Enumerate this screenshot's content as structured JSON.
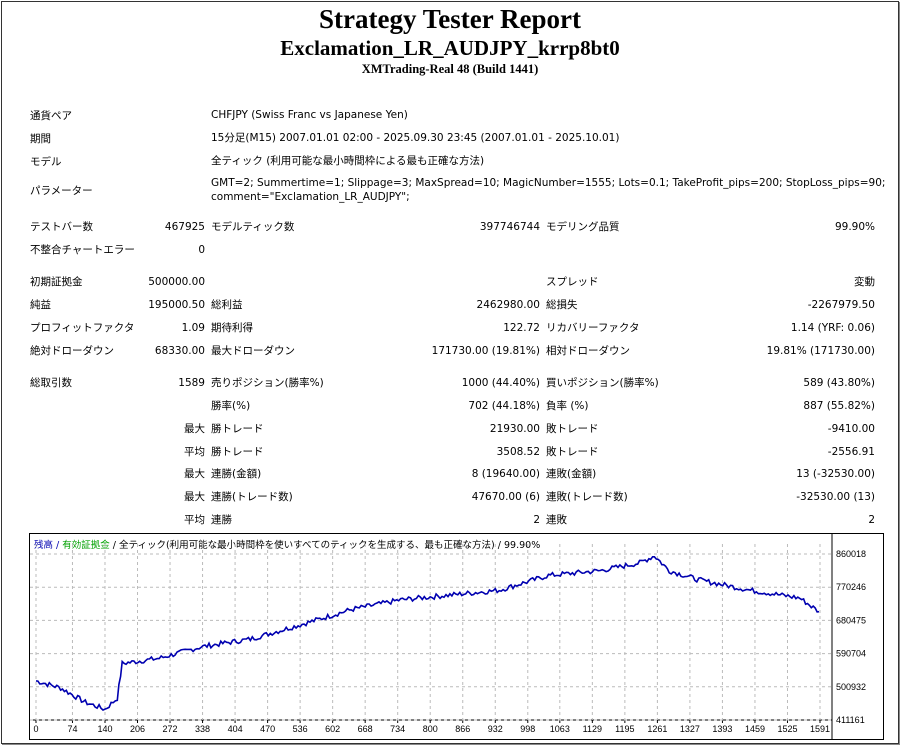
{
  "header": {
    "title": "Strategy Tester Report",
    "subtitle": "Exclamation_LR_AUDJPY_krrp8bt0",
    "server": "XMTrading-Real 48 (Build 1441)"
  },
  "info": [
    {
      "label": "通貨ペア",
      "value": "CHFJPY (Swiss Franc vs Japanese Yen)"
    },
    {
      "label": "期間",
      "value": "15分足(M15) 2007.01.01 02:00 - 2025.09.30 23:45 (2007.01.01 - 2025.10.01)"
    },
    {
      "label": "モデル",
      "value": "全ティック (利用可能な最小時間枠による最も正確な方法)"
    },
    {
      "label": "パラメーター",
      "value": "GMT=2; Summertime=1; Slippage=3; MaxSpread=10; MagicNumber=1555; Lots=0.1; TakeProfit_pips=200; StopLoss_pips=90;",
      "value2": "comment=\"Exclamation_LR_AUDJPY\";"
    }
  ],
  "stats": [
    [
      "テストバー数",
      "467925",
      "モデルティック数",
      "397746744",
      "モデリング品質",
      "99.90%"
    ],
    [
      "不整合チャートエラー",
      "0",
      "",
      "",
      "",
      ""
    ],
    [
      "初期証拠金",
      "500000.00",
      "",
      "",
      "スプレッド",
      "変動"
    ],
    [
      "純益",
      "195000.50",
      "総利益",
      "2462980.00",
      "総損失",
      "-2267979.50"
    ],
    [
      "プロフィットファクタ",
      "1.09",
      "期待利得",
      "122.72",
      "リカバリーファクタ",
      "1.14 (YRF: 0.06)"
    ],
    [
      "絶対ドローダウン",
      "68330.00",
      "最大ドローダウン",
      "171730.00 (19.81%)",
      "相対ドローダウン",
      "19.81% (171730.00)"
    ],
    [
      "総取引数",
      "1589",
      "売りポジション(勝率%)",
      "1000 (44.40%)",
      "買いポジション(勝率%)",
      "589 (43.80%)"
    ],
    [
      "",
      "",
      "勝率(%)",
      "702 (44.18%)",
      "負率 (%)",
      "887 (55.82%)"
    ],
    [
      "",
      "最大",
      "勝トレード",
      "21930.00",
      "敗トレード",
      "-9410.00"
    ],
    [
      "",
      "平均",
      "勝トレード",
      "3508.52",
      "敗トレード",
      "-2556.91"
    ],
    [
      "",
      "最大",
      "連勝(金額)",
      "8 (19640.00)",
      "連敗(金額)",
      "13 (-32530.00)"
    ],
    [
      "",
      "最大",
      "連勝(トレード数)",
      "47670.00 (6)",
      "連敗(トレード数)",
      "-32530.00 (13)"
    ],
    [
      "",
      "平均",
      "連勝",
      "2",
      "連敗",
      "2"
    ]
  ],
  "chart_data": {
    "type": "line",
    "legend": {
      "balance": "残高",
      "sep1": " / ",
      "equity": "有効証拠金",
      "sep2": " / ",
      "model": "全ティック(利用可能な最小時間枠を使いすべてのティックを生成する、最も正確な方法)",
      "sep3": " / ",
      "quality": "99.90%"
    },
    "colors": {
      "balance": "#0000b0",
      "equity": "#00a000"
    },
    "x_ticks": [
      "0",
      "74",
      "140",
      "206",
      "272",
      "338",
      "404",
      "470",
      "536",
      "602",
      "668",
      "734",
      "800",
      "866",
      "932",
      "998",
      "1063",
      "1129",
      "1195",
      "1261",
      "1327",
      "1393",
      "1459",
      "1525",
      "1591"
    ],
    "y_ticks": [
      "860018",
      "770246",
      "680475",
      "590704",
      "500932",
      "411161"
    ],
    "ylim": [
      411161,
      860018
    ],
    "xlim": [
      0,
      1591
    ],
    "series": [
      {
        "name": "残高",
        "points": [
          [
            0,
            517000
          ],
          [
            50,
            498000
          ],
          [
            100,
            459000
          ],
          [
            140,
            440000
          ],
          [
            165,
            470000
          ],
          [
            175,
            564000
          ],
          [
            250,
            578000
          ],
          [
            335,
            609000
          ],
          [
            435,
            630000
          ],
          [
            540,
            670000
          ],
          [
            640,
            710000
          ],
          [
            740,
            736000
          ],
          [
            840,
            749000
          ],
          [
            940,
            762000
          ],
          [
            1040,
            802000
          ],
          [
            1145,
            815000
          ],
          [
            1225,
            836000
          ],
          [
            1255,
            855000
          ],
          [
            1285,
            815000
          ],
          [
            1345,
            790000
          ],
          [
            1450,
            762000
          ],
          [
            1550,
            741000
          ],
          [
            1589,
            704000
          ]
        ]
      }
    ]
  }
}
